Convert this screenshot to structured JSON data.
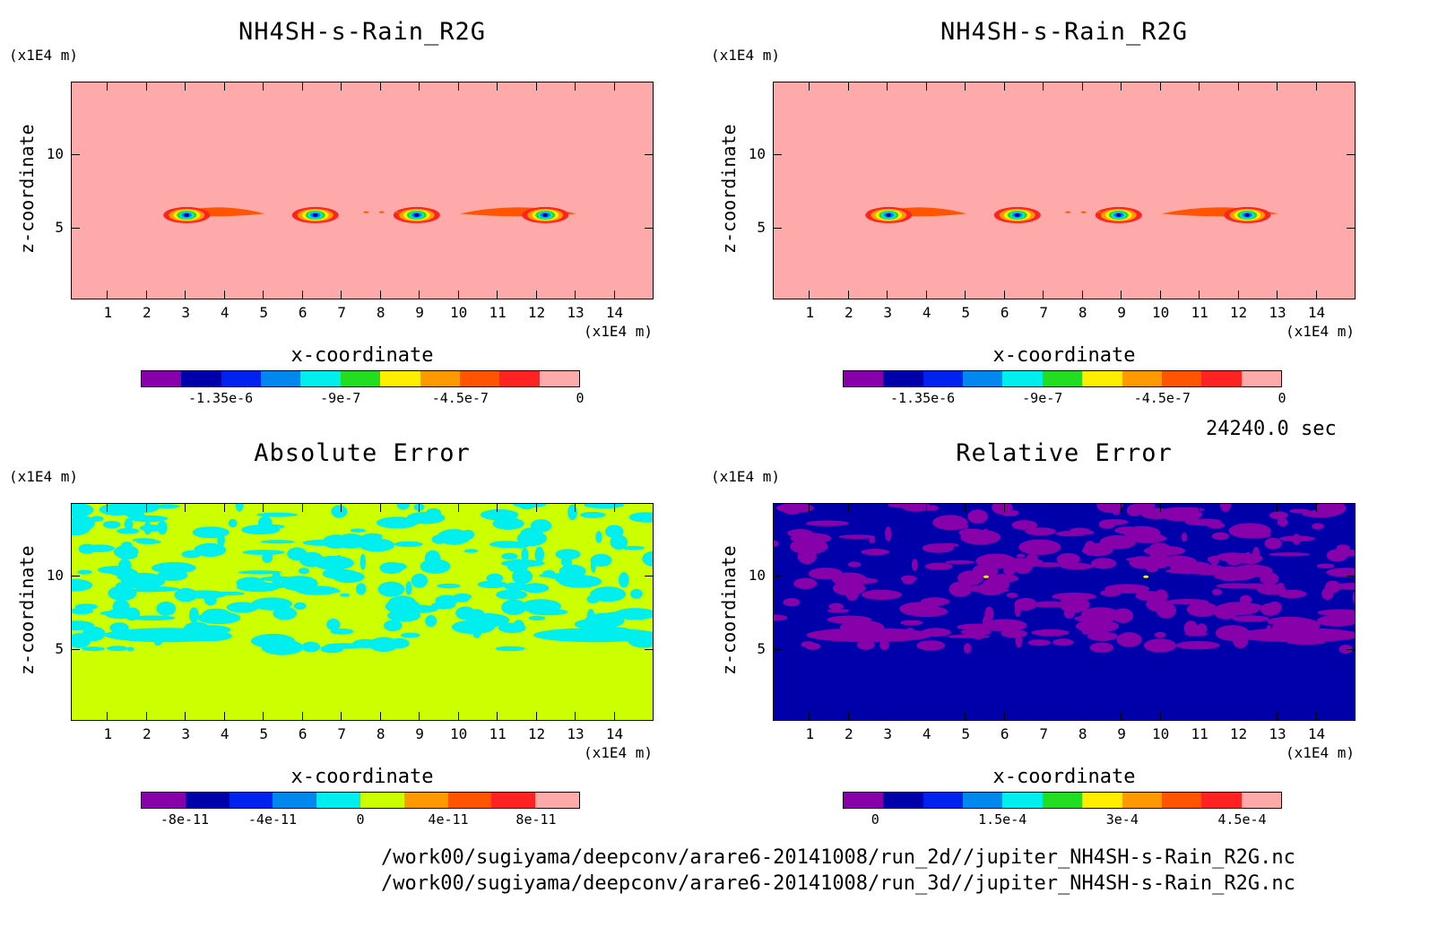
{
  "panels": [
    {
      "title": "NH4SH-s-Rain_R2G",
      "unit_top": "(x1E4 m)",
      "unit_right": "(x1E4 m)",
      "xlabel": "x-coordinate",
      "ylabel": "z-coordinate",
      "background_color": "#ffaaaa",
      "colorbar": {
        "colors": [
          "#8800aa",
          "#0000aa",
          "#0022ee",
          "#0088ee",
          "#00eeee",
          "#22dd22",
          "#ffee00",
          "#ff9900",
          "#ff5500",
          "#ff2222",
          "#ffaaaa"
        ],
        "ticks": [
          "-1.35e-6",
          "-9e-7",
          "-4.5e-7",
          "0"
        ]
      }
    },
    {
      "title": "NH4SH-s-Rain_R2G",
      "unit_top": "(x1E4 m)",
      "unit_right": "(x1E4 m)",
      "xlabel": "x-coordinate",
      "ylabel": "z-coordinate",
      "background_color": "#ffaaaa",
      "colorbar": {
        "colors": [
          "#8800aa",
          "#0000aa",
          "#0022ee",
          "#0088ee",
          "#00eeee",
          "#22dd22",
          "#ffee00",
          "#ff9900",
          "#ff5500",
          "#ff2222",
          "#ffaaaa"
        ],
        "ticks": [
          "-1.35e-6",
          "-9e-7",
          "-4.5e-7",
          "0"
        ]
      }
    },
    {
      "title": "Absolute Error",
      "unit_top": "(x1E4 m)",
      "unit_right": "(x1E4 m)",
      "xlabel": "x-coordinate",
      "ylabel": "z-coordinate",
      "background_color": "#ccff00",
      "colorbar": {
        "colors": [
          "#8800aa",
          "#0000aa",
          "#0022ee",
          "#0088ee",
          "#00eeee",
          "#ccff00",
          "#ff9900",
          "#ff5500",
          "#ff2222",
          "#ffaaaa"
        ],
        "ticks": [
          "-8e-11",
          "-4e-11",
          "0",
          "4e-11",
          "8e-11"
        ]
      }
    },
    {
      "title": "Relative Error",
      "unit_top": "(x1E4 m)",
      "unit_right": "(x1E4 m)",
      "xlabel": "x-coordinate",
      "ylabel": "z-coordinate",
      "background_color": "#0000aa",
      "colorbar": {
        "colors": [
          "#8800aa",
          "#0000aa",
          "#0022ee",
          "#0088ee",
          "#00eeee",
          "#22dd22",
          "#ffee00",
          "#ff9900",
          "#ff5500",
          "#ff2222",
          "#ffaaaa"
        ],
        "ticks": [
          "0",
          "1.5e-4",
          "3e-4",
          "4.5e-4"
        ]
      }
    }
  ],
  "time_label": "24240.0 sec",
  "file_paths": [
    "/work00/sugiyama/deepconv/arare6-20141008/run_2d//jupiter_NH4SH-s-Rain_R2G.nc",
    "/work00/sugiyama/deepconv/arare6-20141008/run_3d//jupiter_NH4SH-s-Rain_R2G.nc"
  ],
  "chart_data": [
    {
      "type": "heatmap",
      "title": "NH4SH-s-Rain_R2G",
      "xlabel": "x-coordinate",
      "ylabel": "z-coordinate",
      "x_unit": "(x1E4 m)",
      "y_unit": "(x1E4 m)",
      "x_ticks": [
        "1",
        "2",
        "3",
        "4",
        "5",
        "6",
        "7",
        "8",
        "9",
        "10",
        "11",
        "12",
        "13",
        "14"
      ],
      "y_ticks": [
        "5",
        "10"
      ],
      "xlim": [
        0.05,
        15.0
      ],
      "ylim": [
        0.05,
        15.0
      ],
      "colorbar_ticks": [
        "-1.35e-6",
        "-9e-7",
        "-4.5e-7",
        "0"
      ],
      "blobs": [
        {
          "x": 3.0,
          "z": 5.9
        },
        {
          "x": 6.3,
          "z": 5.9
        },
        {
          "x": 8.9,
          "z": 5.9
        },
        {
          "x": 12.2,
          "z": 5.9
        }
      ]
    },
    {
      "type": "heatmap",
      "title": "NH4SH-s-Rain_R2G",
      "xlabel": "x-coordinate",
      "ylabel": "z-coordinate",
      "x_unit": "(x1E4 m)",
      "y_unit": "(x1E4 m)",
      "x_ticks": [
        "1",
        "2",
        "3",
        "4",
        "5",
        "6",
        "7",
        "8",
        "9",
        "10",
        "11",
        "12",
        "13",
        "14"
      ],
      "y_ticks": [
        "5",
        "10"
      ],
      "xlim": [
        0.05,
        15.0
      ],
      "ylim": [
        0.05,
        15.0
      ],
      "colorbar_ticks": [
        "-1.35e-6",
        "-9e-7",
        "-4.5e-7",
        "0"
      ],
      "blobs": [
        {
          "x": 3.0,
          "z": 5.9
        },
        {
          "x": 6.3,
          "z": 5.9
        },
        {
          "x": 8.9,
          "z": 5.9
        },
        {
          "x": 12.2,
          "z": 5.9
        }
      ]
    },
    {
      "type": "heatmap",
      "title": "Absolute Error",
      "xlabel": "x-coordinate",
      "ylabel": "z-coordinate",
      "x_unit": "(x1E4 m)",
      "y_unit": "(x1E4 m)",
      "x_ticks": [
        "1",
        "2",
        "3",
        "4",
        "5",
        "6",
        "7",
        "8",
        "9",
        "10",
        "11",
        "12",
        "13",
        "14"
      ],
      "y_ticks": [
        "5",
        "10"
      ],
      "xlim": [
        0.05,
        15.0
      ],
      "ylim": [
        0.05,
        15.0
      ],
      "colorbar_ticks": [
        "-8e-11",
        "-4e-11",
        "0",
        "4e-11",
        "8e-11"
      ]
    },
    {
      "type": "heatmap",
      "title": "Relative Error",
      "xlabel": "x-coordinate",
      "ylabel": "z-coordinate",
      "x_unit": "(x1E4 m)",
      "y_unit": "(x1E4 m)",
      "x_ticks": [
        "1",
        "2",
        "3",
        "4",
        "5",
        "6",
        "7",
        "8",
        "9",
        "10",
        "11",
        "12",
        "13",
        "14"
      ],
      "y_ticks": [
        "5",
        "10"
      ],
      "xlim": [
        0.05,
        15.0
      ],
      "ylim": [
        0.05,
        15.0
      ],
      "colorbar_ticks": [
        "0",
        "1.5e-4",
        "3e-4",
        "4.5e-4"
      ]
    }
  ]
}
